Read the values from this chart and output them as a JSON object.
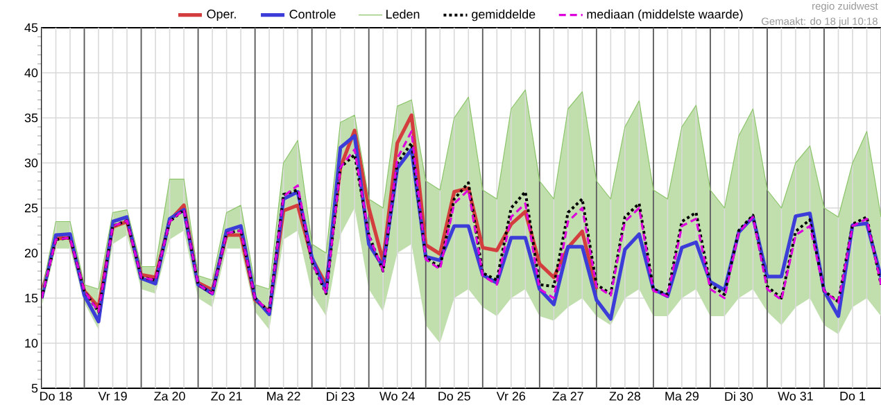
{
  "chart_data": {
    "type": "line",
    "annotations": [
      "regio zuidwest",
      "Gemaakt: do 18 jul 10:18"
    ],
    "categories": [
      null,
      "Do 18",
      null,
      null,
      null,
      "Vr 19",
      null,
      null,
      null,
      "Za 20",
      null,
      null,
      null,
      "Zo 21",
      null,
      null,
      null,
      "Ma 22",
      null,
      null,
      null,
      "Di 23",
      null,
      null,
      null,
      "Wo 24",
      null,
      null,
      null,
      "Do 25",
      null,
      null,
      null,
      "Vr 26",
      null,
      null,
      null,
      "Za 27",
      null,
      null,
      null,
      "Zo 28",
      null,
      null,
      null,
      "Ma 29",
      null,
      null,
      null,
      "Di 30",
      null,
      null,
      null,
      "Wo 31",
      null,
      null,
      null,
      "Do 1",
      null,
      null
    ],
    "ylim": [
      5,
      45
    ],
    "yticks": [
      5,
      10,
      15,
      20,
      25,
      30,
      35,
      40,
      45
    ],
    "grid": true,
    "legend": "top",
    "marker": "none",
    "series": [
      {
        "name": "Oper.",
        "color": "#d43d3d",
        "line_style": "solid",
        "values": [
          15.5,
          21.6,
          21.7,
          15.8,
          14.0,
          22.9,
          23.5,
          17.6,
          17.3,
          23.6,
          25.3,
          16.7,
          15.9,
          22.0,
          22.0,
          14.8,
          13.5,
          24.7,
          25.3,
          19.4,
          16.5,
          29.5,
          33.6,
          25.0,
          19.1,
          32.2,
          35.3,
          20.9,
          19.9,
          26.8,
          27.2,
          20.6,
          20.3,
          23.2,
          24.6,
          18.8,
          17.3,
          20.6,
          22.4,
          16.0,
          null,
          null,
          null,
          null,
          null,
          null,
          null,
          null,
          null,
          null,
          null,
          null,
          null,
          null,
          null,
          null,
          null,
          null,
          null,
          null
        ]
      },
      {
        "name": "Controle",
        "color": "#3c3cd8",
        "line_style": "solid",
        "values": [
          15,
          22.0,
          22.1,
          15.3,
          12.4,
          23.5,
          24.0,
          17.2,
          16.6,
          23.8,
          24.8,
          16.5,
          15.5,
          22.5,
          23.0,
          15.0,
          13.2,
          26.0,
          26.8,
          19.5,
          15.8,
          31.7,
          33.0,
          21.0,
          18.5,
          29.4,
          31.5,
          19.6,
          19.2,
          23.0,
          23.0,
          17.6,
          16.7,
          21.7,
          21.7,
          16.0,
          14.3,
          20.7,
          20.7,
          14.8,
          12.7,
          20.4,
          22.1,
          16.0,
          15.2,
          20.6,
          21.2,
          16.8,
          15.9,
          22.3,
          24.0,
          17.4,
          17.4,
          24.1,
          24.4,
          15.8,
          13.0,
          23.1,
          23.3,
          17.3
        ]
      },
      {
        "name": "Leden",
        "color": "#8cc46a",
        "line_style": "solid",
        "values": [
          15.5,
          23.5,
          23.5,
          16.5,
          16,
          24.5,
          24.8,
          18.5,
          18.5,
          28.2,
          28.2,
          17.5,
          17,
          24.5,
          25.3,
          16.5,
          16,
          30,
          32.5,
          21,
          20,
          34.5,
          35.3,
          26,
          25,
          36.3,
          37.0,
          28,
          27,
          35,
          37.3,
          27,
          26,
          36,
          38.1,
          28,
          26,
          36,
          37.9,
          28,
          26,
          34,
          36.9,
          27,
          26,
          34,
          36.4,
          27,
          25,
          33,
          36.0,
          27,
          25,
          30,
          31.9,
          25,
          24,
          30,
          33.5,
          24
        ],
        "lower": [
          14,
          20.5,
          20.5,
          14.5,
          11.5,
          21,
          22,
          16,
          15.5,
          21.5,
          22.5,
          15,
          14,
          20.5,
          20.5,
          13.5,
          11.5,
          21.5,
          22.5,
          15.5,
          13,
          22,
          25,
          16,
          13.5,
          20,
          21,
          12,
          10,
          15,
          16,
          14,
          13,
          15,
          16,
          13,
          12.5,
          14,
          15,
          13,
          12,
          15,
          16,
          13,
          13,
          15,
          16,
          13,
          13,
          15,
          16,
          13.5,
          12,
          14,
          15,
          12,
          11,
          14,
          15,
          13
        ],
        "upper": [
          15.5,
          23.5,
          23.5,
          16.5,
          16,
          24.5,
          24.8,
          18.5,
          18.5,
          28.2,
          28.2,
          17.5,
          17,
          24.5,
          25.3,
          16.5,
          16,
          30,
          32.5,
          21,
          20,
          34.5,
          35.3,
          26,
          25,
          36.3,
          37.0,
          28,
          27,
          35,
          37.3,
          27,
          26,
          36,
          38.1,
          28,
          26,
          36,
          37.9,
          28,
          26,
          34,
          36.9,
          27,
          26,
          34,
          36.4,
          27,
          25,
          33,
          36.0,
          27,
          25,
          30,
          31.9,
          25,
          24,
          30,
          33.5,
          24
        ]
      },
      {
        "name": "gemiddelde",
        "color": "#000000",
        "line_style": "dotted",
        "values": [
          15.0,
          21.5,
          21.7,
          15.8,
          13.5,
          23.0,
          23.6,
          17.3,
          17.0,
          23.5,
          24.8,
          16.5,
          15.5,
          22.2,
          22.5,
          15.0,
          13.5,
          26.5,
          27.0,
          19.0,
          15.5,
          29.5,
          30.9,
          22.0,
          18.0,
          30.0,
          32.2,
          19.5,
          18.4,
          26.0,
          27.8,
          17.8,
          17.0,
          25.0,
          26.8,
          16.5,
          16.3,
          24.5,
          26.0,
          16.5,
          15.5,
          24.0,
          25.5,
          16.0,
          15.4,
          23.5,
          24.5,
          16.5,
          15.4,
          22.5,
          24.2,
          16.3,
          15.0,
          22.4,
          23.7,
          15.8,
          14.6,
          23.2,
          24.0,
          16.5
        ]
      },
      {
        "name": "mediaan (middelste waarde)",
        "color": "#dd00dd",
        "line_style": "dashed",
        "values": [
          15.0,
          21.5,
          21.7,
          15.8,
          13.5,
          23.0,
          23.6,
          17.3,
          17.0,
          23.5,
          24.8,
          16.5,
          15.5,
          22.2,
          22.5,
          15.0,
          13.5,
          26.3,
          27.5,
          19.0,
          15.5,
          29.5,
          31.5,
          22.0,
          18.0,
          30.5,
          33.5,
          19.3,
          18.2,
          25.5,
          27.0,
          17.5,
          16.5,
          24.0,
          25.5,
          16.0,
          15.0,
          23.5,
          25.0,
          16.3,
          15.3,
          23.5,
          25.0,
          15.8,
          15.2,
          23.0,
          23.8,
          16.0,
          15.0,
          22.3,
          24.0,
          16.0,
          14.8,
          22.0,
          23.0,
          15.8,
          14.5,
          23.0,
          23.8,
          16.5
        ]
      }
    ]
  }
}
